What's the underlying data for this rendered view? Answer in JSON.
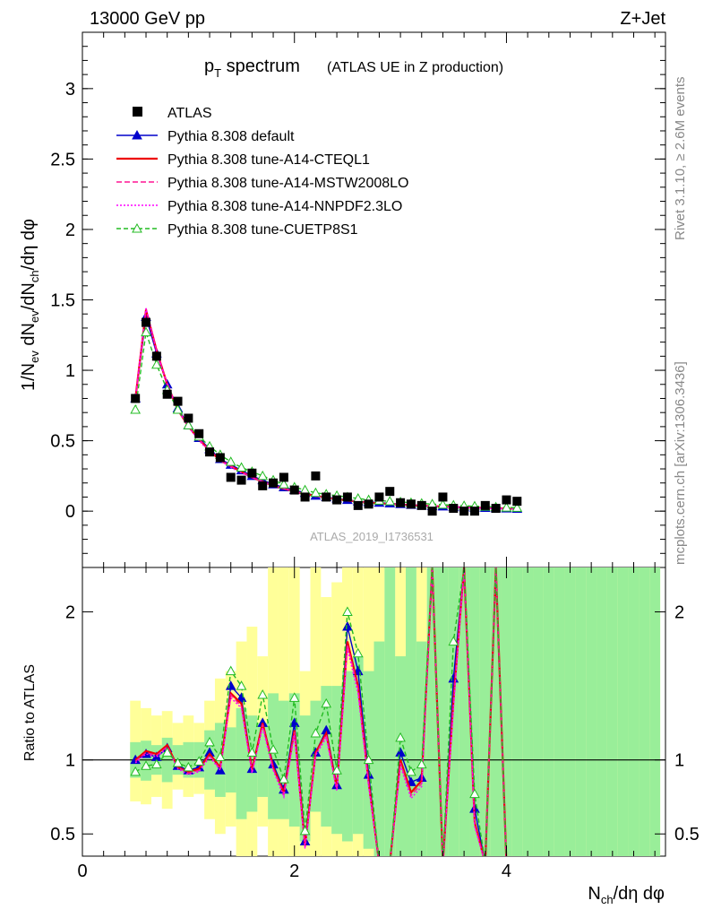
{
  "header": {
    "left": "13000 GeV pp",
    "right": "Z+Jet"
  },
  "title": {
    "main_p": "p",
    "main_sub": "T",
    "main_rest": " spectrum",
    "detail": "(ATLAS UE in Z production)"
  },
  "side": {
    "rivet": "Rivet 3.1.10, ≥ 2.6M events",
    "mcplots": "mcplots.cern.ch [arXiv:1306.3436]"
  },
  "analysis_id": "ATLAS_2019_I1736531",
  "chart_data": [
    {
      "type": "scatter",
      "panel": "main",
      "ylabel": "1/Nev dNev/dNch/dη dφ",
      "ylim": [
        -0.4,
        3.4
      ],
      "xlim": [
        0,
        4.16
      ],
      "yticks": [
        0,
        0.5,
        1,
        1.5,
        2,
        2.5,
        3
      ],
      "ytick_labels": [
        "0",
        "0.5",
        "1",
        "1.5",
        "2",
        "2.5",
        "3"
      ],
      "legend_placement": "top-left",
      "x": [
        0.5,
        0.6,
        0.7,
        0.8,
        0.9,
        1.0,
        1.1,
        1.2,
        1.3,
        1.4,
        1.5,
        1.6,
        1.7,
        1.8,
        1.9,
        2.0,
        2.1,
        2.2,
        2.3,
        2.4,
        2.5,
        2.6,
        2.7,
        2.8,
        2.9,
        3.0,
        3.1,
        3.2,
        3.3,
        3.4,
        3.5,
        3.6,
        3.7,
        3.8,
        3.9,
        4.0,
        4.1
      ],
      "series": [
        {
          "name": "ATLAS",
          "color": "#000000",
          "marker": "square",
          "y": [
            0.8,
            1.34,
            1.1,
            0.83,
            0.78,
            0.66,
            0.55,
            0.42,
            0.38,
            0.24,
            0.22,
            0.27,
            0.18,
            0.2,
            0.24,
            0.15,
            0.1,
            0.25,
            0.1,
            0.08,
            0.1,
            0.04,
            0.05,
            0.1,
            0.14,
            0.06,
            0.05,
            0.04,
            0.0,
            0.1,
            0.02,
            0.0,
            0.0,
            0.04,
            0.02,
            0.08,
            0.07
          ]
        },
        {
          "name": "Pythia 8.308 default",
          "color": "#0000cc",
          "marker": "triangle",
          "dash": "",
          "y": [
            0.8,
            1.38,
            1.12,
            0.9,
            0.73,
            0.61,
            0.52,
            0.44,
            0.37,
            0.33,
            0.29,
            0.25,
            0.22,
            0.19,
            0.17,
            0.15,
            0.13,
            0.11,
            0.1,
            0.09,
            0.08,
            0.07,
            0.065,
            0.06,
            0.055,
            0.05,
            0.045,
            0.04,
            0.037,
            0.034,
            0.031,
            0.028,
            0.025,
            0.023,
            0.021,
            0.019,
            0.017
          ]
        },
        {
          "name": "Pythia 8.308 tune-A14-CTEQL1",
          "color": "#ee0000",
          "marker": "",
          "dash": "",
          "y": [
            0.8,
            1.43,
            1.14,
            0.9,
            0.72,
            0.6,
            0.51,
            0.43,
            0.36,
            0.32,
            0.28,
            0.24,
            0.21,
            0.18,
            0.16,
            0.14,
            0.12,
            0.11,
            0.095,
            0.085,
            0.075,
            0.068,
            0.06,
            0.055,
            0.05,
            0.046,
            0.042,
            0.038,
            0.035,
            0.032,
            0.029,
            0.026,
            0.024,
            0.022,
            0.02,
            0.018,
            0.016
          ]
        },
        {
          "name": "Pythia 8.308 tune-A14-MSTW2008LO",
          "color": "#ff1493",
          "marker": "",
          "dash": "6,3",
          "y": [
            0.8,
            1.44,
            1.14,
            0.91,
            0.72,
            0.6,
            0.51,
            0.43,
            0.36,
            0.32,
            0.28,
            0.24,
            0.21,
            0.18,
            0.16,
            0.14,
            0.12,
            0.105,
            0.095,
            0.085,
            0.075,
            0.067,
            0.06,
            0.054,
            0.049,
            0.045,
            0.041,
            0.037,
            0.034,
            0.031,
            0.028,
            0.026,
            0.023,
            0.021,
            0.019,
            0.017,
            0.015
          ]
        },
        {
          "name": "Pythia 8.308 tune-A14-NNPDF2.3LO",
          "color": "#ff00ff",
          "marker": "",
          "dash": "2,2",
          "y": [
            0.8,
            1.44,
            1.13,
            0.9,
            0.72,
            0.6,
            0.5,
            0.42,
            0.36,
            0.31,
            0.27,
            0.24,
            0.21,
            0.18,
            0.16,
            0.14,
            0.12,
            0.105,
            0.094,
            0.084,
            0.074,
            0.066,
            0.059,
            0.053,
            0.048,
            0.044,
            0.04,
            0.036,
            0.033,
            0.03,
            0.027,
            0.025,
            0.022,
            0.02,
            0.018,
            0.016,
            0.015
          ]
        },
        {
          "name": "Pythia 8.308 tune-CUETP8S1",
          "color": "#22bb22",
          "marker": "open-triangle",
          "dash": "5,3",
          "y": [
            0.72,
            1.27,
            1.04,
            0.86,
            0.72,
            0.61,
            0.53,
            0.46,
            0.4,
            0.35,
            0.31,
            0.28,
            0.25,
            0.22,
            0.19,
            0.17,
            0.15,
            0.13,
            0.12,
            0.11,
            0.1,
            0.09,
            0.08,
            0.075,
            0.07,
            0.065,
            0.06,
            0.055,
            0.05,
            0.046,
            0.042,
            0.038,
            0.035,
            0.032,
            0.029,
            0.026,
            0.024
          ]
        }
      ]
    },
    {
      "type": "line",
      "panel": "ratio",
      "ylabel": "Ratio to ATLAS",
      "xlabel": "Nch/dη dφ",
      "xlim": [
        0,
        5.5
      ],
      "ylim": [
        0.35,
        2.3
      ],
      "xticks": [
        0,
        2,
        4
      ],
      "xtick_labels": [
        "0",
        "2",
        "4"
      ],
      "yticks": [
        0.5,
        1,
        2
      ],
      "ytick_labels": [
        "0.5",
        "1",
        "2"
      ],
      "x": [
        0.5,
        0.6,
        0.7,
        0.8,
        0.9,
        1.0,
        1.1,
        1.2,
        1.3,
        1.4,
        1.5,
        1.6,
        1.7,
        1.8,
        1.9,
        2.0,
        2.1,
        2.2,
        2.3,
        2.4,
        2.5,
        2.6,
        2.7,
        2.8,
        2.9,
        3.0,
        3.1,
        3.2,
        3.3,
        3.4,
        3.5,
        3.6,
        3.7,
        3.8,
        3.9,
        4.0,
        4.1
      ],
      "series": [
        {
          "name": "Pythia 8.308 default",
          "color": "#0000cc",
          "marker": "triangle",
          "y": [
            1.0,
            1.04,
            1.02,
            1.08,
            0.96,
            0.93,
            0.95,
            1.05,
            0.93,
            1.5,
            1.42,
            0.94,
            1.25,
            0.97,
            0.8,
            1.25,
            0.45,
            1.05,
            1.2,
            0.83,
            1.9,
            1.6,
            0.9,
            0.3,
            0.3,
            1.05,
            0.85,
            0.88,
            2.3,
            0.3,
            1.55,
            2.3,
            0.67,
            0.3,
            2.3,
            0.3,
            0.3
          ]
        },
        {
          "name": "Pythia 8.308 tune-A14-CTEQL1",
          "color": "#ee0000",
          "marker": "",
          "y": [
            1.0,
            1.06,
            1.04,
            1.1,
            0.95,
            0.92,
            0.94,
            1.04,
            0.95,
            1.45,
            1.38,
            0.93,
            1.25,
            0.95,
            0.78,
            1.2,
            0.42,
            1.05,
            1.18,
            0.81,
            1.8,
            1.5,
            0.85,
            0.3,
            0.3,
            1.0,
            0.78,
            0.86,
            2.3,
            0.3,
            1.4,
            2.3,
            0.58,
            0.3,
            2.3,
            0.3,
            0.3
          ]
        },
        {
          "name": "Pythia 8.308 tune-A14-MSTW2008LO",
          "color": "#ff1493",
          "marker": "",
          "y": [
            0.99,
            1.05,
            1.03,
            1.09,
            0.95,
            0.91,
            0.93,
            1.03,
            0.94,
            1.44,
            1.36,
            0.92,
            1.24,
            0.94,
            0.77,
            1.19,
            0.41,
            1.04,
            1.17,
            0.8,
            1.78,
            1.48,
            0.84,
            0.3,
            0.3,
            0.98,
            0.76,
            0.84,
            2.3,
            0.3,
            1.38,
            2.3,
            0.56,
            0.3,
            2.3,
            0.3,
            0.3
          ]
        },
        {
          "name": "Pythia 8.308 tune-A14-NNPDF2.3LO",
          "color": "#ff00ff",
          "marker": "",
          "y": [
            0.98,
            1.04,
            1.02,
            1.08,
            0.94,
            0.9,
            0.92,
            1.02,
            0.93,
            1.42,
            1.35,
            0.91,
            1.22,
            0.93,
            0.75,
            1.17,
            0.4,
            1.03,
            1.15,
            0.79,
            1.75,
            1.45,
            0.82,
            0.3,
            0.3,
            0.96,
            0.74,
            0.82,
            2.3,
            0.3,
            1.35,
            2.3,
            0.55,
            0.3,
            2.3,
            0.3,
            0.3
          ]
        },
        {
          "name": "Pythia 8.308 tune-CUETP8S1",
          "color": "#22bb22",
          "marker": "open-triangle",
          "y": [
            0.92,
            0.96,
            0.97,
            1.05,
            0.98,
            0.95,
            0.99,
            1.12,
            1.02,
            1.6,
            1.5,
            1.05,
            1.44,
            1.07,
            0.87,
            1.42,
            0.52,
            1.18,
            1.38,
            0.93,
            2.0,
            1.72,
            1.0,
            0.3,
            0.3,
            1.15,
            0.92,
            0.97,
            2.3,
            0.3,
            1.8,
            2.3,
            0.77,
            0.3,
            2.3,
            0.3,
            0.3
          ]
        }
      ],
      "bands": [
        {
          "name": "yellow",
          "color": "#ffff99",
          "x": [
            0.45,
            0.55,
            0.65,
            0.75,
            0.85,
            0.95,
            1.05,
            1.15,
            1.25,
            1.35,
            1.45,
            1.55,
            1.65,
            1.75,
            1.85,
            1.95,
            2.05,
            2.15,
            2.25,
            2.35,
            2.45,
            2.55,
            2.65,
            2.75,
            2.85,
            2.95,
            3.05,
            3.15,
            3.25,
            3.35,
            3.45,
            3.55,
            3.65,
            3.75,
            3.85,
            3.95,
            4.05,
            4.15,
            4.25,
            4.35,
            4.45,
            4.55,
            4.65,
            4.75,
            4.85,
            4.95,
            5.05,
            5.15,
            5.25,
            5.35
          ],
          "lo": [
            0.72,
            0.7,
            0.75,
            0.67,
            0.8,
            0.75,
            0.77,
            0.6,
            0.5,
            0.55,
            0.3,
            0.3,
            0.55,
            0.3,
            0.3,
            0.3,
            0.3,
            0.3,
            0.3,
            0.3,
            0.3,
            0.3,
            0.3,
            0.3,
            0.3,
            0.3,
            0.3,
            0.3,
            0.3,
            0.3,
            0.3,
            0.3,
            0.3,
            0.3,
            0.3,
            0.3,
            0.3,
            0.3,
            0.3,
            0.3,
            0.3,
            0.3,
            0.3,
            0.3,
            0.3,
            0.3,
            0.3,
            0.3,
            0.3,
            0.3
          ],
          "hi": [
            1.4,
            1.35,
            1.3,
            1.33,
            1.25,
            1.3,
            1.25,
            1.4,
            1.55,
            1.6,
            1.8,
            1.9,
            1.7,
            2.4,
            2.4,
            2.3,
            1.6,
            2.4,
            2.1,
            2.2,
            2.4,
            2.4,
            2.4,
            2.4,
            2.4,
            2.4,
            2.4,
            2.4,
            2.4,
            2.4,
            2.4,
            2.4,
            2.4,
            2.4,
            2.4,
            2.4,
            2.4,
            2.4,
            2.4,
            2.4,
            2.4,
            2.4,
            2.4,
            2.4,
            2.4,
            2.4,
            2.4,
            2.4,
            2.4,
            2.4
          ]
        },
        {
          "name": "green",
          "color": "#99ee99",
          "x": [
            0.45,
            0.55,
            0.65,
            0.75,
            0.85,
            0.95,
            1.05,
            1.15,
            1.25,
            1.35,
            1.45,
            1.55,
            1.65,
            1.75,
            1.85,
            1.95,
            2.05,
            2.15,
            2.25,
            2.35,
            2.45,
            2.55,
            2.65,
            2.75,
            2.85,
            2.95,
            3.05,
            3.15,
            3.25,
            3.35,
            3.45,
            3.55,
            3.65,
            3.75,
            3.85,
            3.95,
            4.05,
            4.15,
            4.25,
            4.35,
            4.45,
            4.55,
            4.65,
            4.75,
            4.85,
            4.95,
            5.05,
            5.15,
            5.25,
            5.35
          ],
          "lo": [
            0.88,
            0.86,
            0.9,
            0.85,
            0.9,
            0.88,
            0.88,
            0.8,
            0.75,
            0.78,
            0.6,
            0.65,
            0.75,
            0.6,
            0.6,
            0.55,
            0.45,
            0.65,
            0.55,
            0.5,
            0.45,
            0.5,
            0.4,
            0.3,
            0.3,
            0.35,
            0.3,
            0.3,
            0.3,
            0.3,
            0.3,
            0.3,
            0.3,
            0.3,
            0.3,
            0.3,
            0.3,
            0.3,
            0.3,
            0.3,
            0.3,
            0.3,
            0.3,
            0.3,
            0.3,
            0.3,
            0.3,
            0.3,
            0.3,
            0.3
          ],
          "hi": [
            1.12,
            1.13,
            1.1,
            1.15,
            1.1,
            1.12,
            1.12,
            1.2,
            1.25,
            1.22,
            1.35,
            1.3,
            1.25,
            1.45,
            1.4,
            1.45,
            1.3,
            1.4,
            1.5,
            1.5,
            1.6,
            1.7,
            1.6,
            1.8,
            2.4,
            1.7,
            2.4,
            1.8,
            2.4,
            2.4,
            2.4,
            2.4,
            2.4,
            2.4,
            2.4,
            2.4,
            2.4,
            2.4,
            2.4,
            2.4,
            2.4,
            2.4,
            2.4,
            2.4,
            2.4,
            2.4,
            2.4,
            2.4,
            2.4,
            2.4
          ]
        }
      ]
    }
  ]
}
